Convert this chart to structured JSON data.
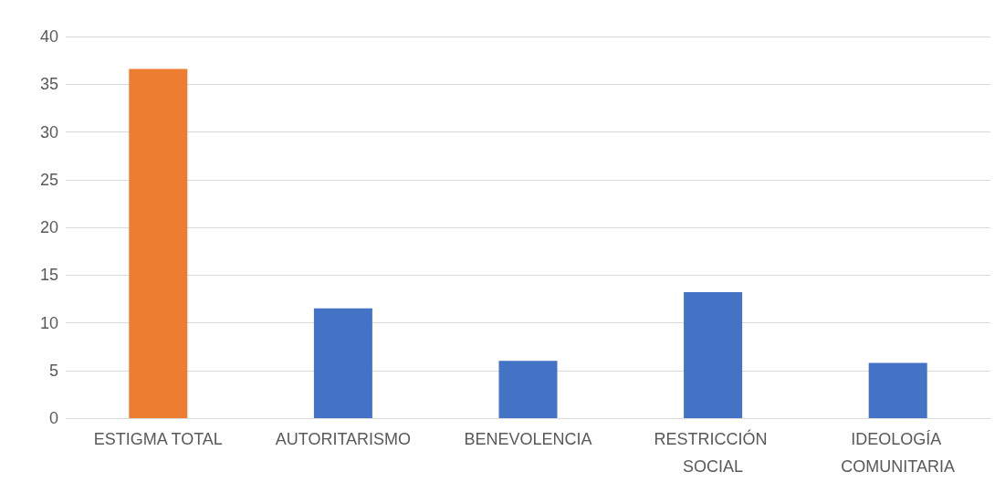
{
  "chart_data": {
    "type": "bar",
    "categories": [
      "ESTIGMA TOTAL",
      "AUTORITARISMO",
      "BENEVOLENCIA",
      "RESTRICCIÓN SOCIAL",
      "IDEOLOGÍA COMUNITARIA"
    ],
    "values": [
      36.6,
      11.5,
      6.0,
      13.2,
      5.8
    ],
    "colors": [
      "#ed7d31",
      "#4472c4",
      "#4472c4",
      "#4472c4",
      "#4472c4"
    ],
    "ylim": [
      0,
      40
    ],
    "yticks": [
      0,
      5,
      10,
      15,
      20,
      25,
      30,
      35,
      40
    ],
    "grid": "y"
  }
}
